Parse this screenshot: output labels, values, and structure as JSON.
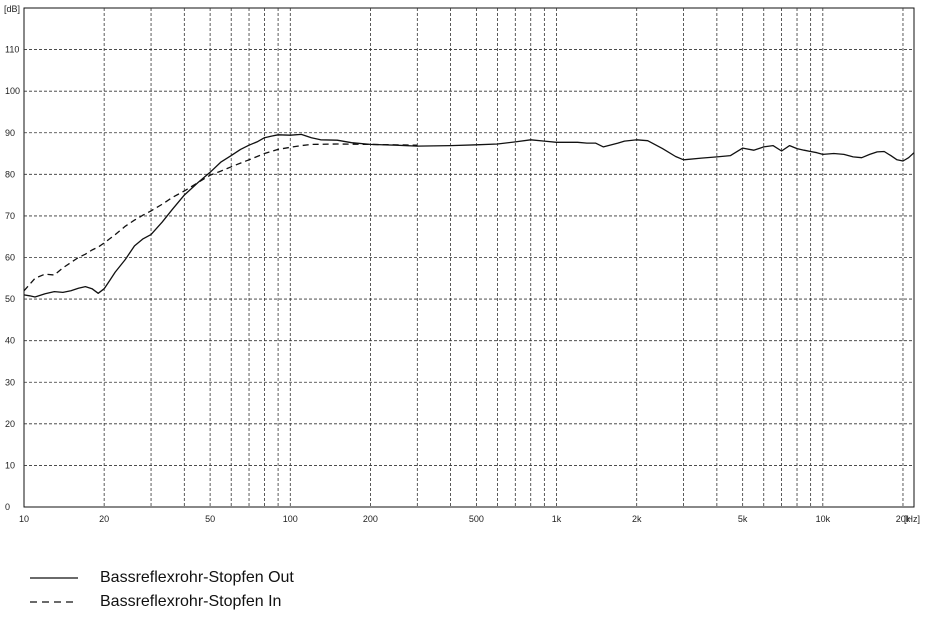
{
  "chart_data": {
    "type": "line",
    "title": "",
    "xlabel": "",
    "ylabel": "",
    "x_scale": "log",
    "xlim": [
      10,
      22000
    ],
    "ylim": [
      0,
      120
    ],
    "grid": true,
    "legend_position": "bottom-left",
    "y_unit": "[dB]",
    "x_unit": "[Hz]",
    "y_ticks": [
      {
        "value": 0,
        "label": "0"
      },
      {
        "value": 10,
        "label": "10"
      },
      {
        "value": 20,
        "label": "20"
      },
      {
        "value": 30,
        "label": "30"
      },
      {
        "value": 40,
        "label": "40"
      },
      {
        "value": 50,
        "label": "50"
      },
      {
        "value": 60,
        "label": "60"
      },
      {
        "value": 70,
        "label": "70"
      },
      {
        "value": 80,
        "label": "80"
      },
      {
        "value": 90,
        "label": "90"
      },
      {
        "value": 100,
        "label": "100"
      },
      {
        "value": 110,
        "label": "110"
      }
    ],
    "x_ticks": [
      {
        "value": 10,
        "label": "10"
      },
      {
        "value": 20,
        "label": "20"
      },
      {
        "value": 50,
        "label": "50"
      },
      {
        "value": 100,
        "label": "100"
      },
      {
        "value": 200,
        "label": "200"
      },
      {
        "value": 500,
        "label": "500"
      },
      {
        "value": 1000,
        "label": "1k"
      },
      {
        "value": 2000,
        "label": "2k"
      },
      {
        "value": 5000,
        "label": "5k"
      },
      {
        "value": 10000,
        "label": "10k"
      },
      {
        "value": 20000,
        "label": "20k"
      }
    ],
    "x_grid": [
      20,
      30,
      40,
      50,
      60,
      70,
      80,
      90,
      100,
      200,
      300,
      400,
      500,
      600,
      700,
      800,
      900,
      1000,
      2000,
      3000,
      4000,
      5000,
      6000,
      7000,
      8000,
      9000,
      10000,
      20000
    ],
    "series": [
      {
        "name": "Bassreflexrohr-Stopfen Out",
        "dash": "solid",
        "x": [
          10,
          10.5,
          11,
          12,
          13,
          14,
          15,
          16,
          17,
          18,
          19,
          20,
          21,
          22,
          24,
          26,
          28,
          30,
          33,
          36,
          40,
          45,
          50,
          55,
          60,
          65,
          70,
          75,
          80,
          85,
          90,
          100,
          110,
          120,
          130,
          150,
          170,
          200,
          250,
          300,
          400,
          500,
          600,
          700,
          800,
          900,
          1000,
          1100,
          1200,
          1300,
          1400,
          1500,
          1700,
          1800,
          2000,
          2200,
          2500,
          2800,
          3000,
          3500,
          4000,
          4500,
          5000,
          5500,
          6000,
          6500,
          7000,
          7500,
          8000,
          8500,
          9000,
          9500,
          10000,
          11000,
          12000,
          13000,
          14000,
          15000,
          16000,
          17000,
          18000,
          19000,
          20000,
          21000,
          22000
        ],
        "y": [
          51,
          50.8,
          50.5,
          51.3,
          51.8,
          51.6,
          52,
          52.6,
          53,
          52.5,
          51.4,
          52.5,
          54.5,
          56.5,
          59.5,
          62.8,
          64.5,
          65.5,
          68.5,
          71.5,
          75,
          78,
          80.5,
          83,
          84.5,
          86,
          87,
          87.8,
          88.8,
          89.2,
          89.5,
          89.4,
          89.6,
          88.8,
          88.3,
          88.2,
          87.6,
          87.2,
          87.0,
          86.8,
          86.9,
          87.1,
          87.3,
          87.8,
          88.3,
          88.0,
          87.7,
          87.7,
          87.7,
          87.5,
          87.5,
          86.6,
          87.5,
          88.0,
          88.3,
          88.1,
          86.2,
          84.3,
          83.5,
          83.9,
          84.2,
          84.5,
          86.3,
          85.8,
          86.6,
          86.9,
          85.6,
          86.9,
          86.2,
          85.8,
          85.5,
          85.2,
          84.8,
          85.0,
          84.8,
          84.2,
          84.0,
          84.8,
          85.4,
          85.5,
          84.5,
          83.5,
          83.2,
          84.0,
          85.2
        ]
      },
      {
        "name": "Bassreflexrohr-Stopfen In",
        "dash": "dashed",
        "x": [
          10,
          11,
          12,
          13,
          14,
          15,
          16,
          17,
          18,
          19,
          20,
          22,
          24,
          26,
          28,
          30,
          33,
          36,
          40,
          45,
          50,
          55,
          60,
          65,
          70,
          80,
          90,
          100,
          110,
          120,
          150,
          200,
          300
        ],
        "y": [
          52,
          55,
          56,
          55.8,
          57.5,
          58.8,
          60,
          60.8,
          61.8,
          62.5,
          63.5,
          65.5,
          67.5,
          69,
          70.2,
          71.2,
          72.8,
          74.4,
          76,
          78,
          79.8,
          80.8,
          81.8,
          82.7,
          83.5,
          85,
          86,
          86.5,
          86.9,
          87.2,
          87.3,
          87.2,
          87.0
        ]
      }
    ]
  }
}
